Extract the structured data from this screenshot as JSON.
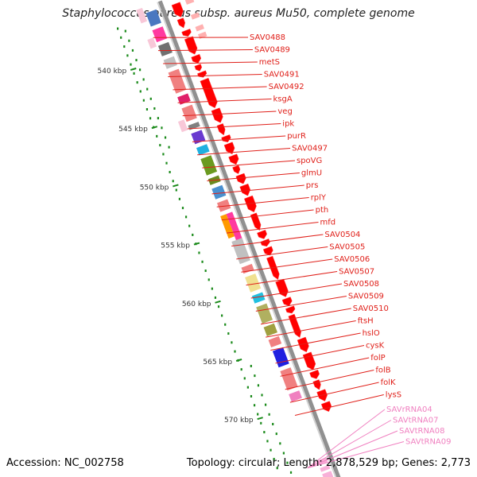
{
  "title": "Staphylococcus aureus subsp. aureus Mu50, complete genome",
  "footer": {
    "accession": "Accession: NC_002758",
    "topology": "Topology: circular; Length: 2,878,529 bp; Genes: 2,773"
  },
  "colors": {
    "backbone": "#909090",
    "forward_arrow": "#ff0000",
    "label_red": "#e0201a",
    "label_pink": "#f080c0",
    "ruler": "#1a8a1a"
  },
  "kbp_ticks": [
    "540 kbp",
    "545 kbp",
    "550 kbp",
    "555 kbp",
    "560 kbp",
    "565 kbp",
    "570 kbp"
  ],
  "gene_labels": [
    {
      "text": "SAV0488",
      "kind": "cds"
    },
    {
      "text": "SAV0489",
      "kind": "cds"
    },
    {
      "text": "metS",
      "kind": "cds"
    },
    {
      "text": "SAV0491",
      "kind": "cds"
    },
    {
      "text": "SAV0492",
      "kind": "cds"
    },
    {
      "text": "ksgA",
      "kind": "cds"
    },
    {
      "text": "veg",
      "kind": "cds"
    },
    {
      "text": "ipk",
      "kind": "cds"
    },
    {
      "text": "purR",
      "kind": "cds"
    },
    {
      "text": "SAV0497",
      "kind": "cds"
    },
    {
      "text": "spoVG",
      "kind": "cds"
    },
    {
      "text": "glmU",
      "kind": "cds"
    },
    {
      "text": "prs",
      "kind": "cds"
    },
    {
      "text": "rplY",
      "kind": "cds"
    },
    {
      "text": "pth",
      "kind": "cds"
    },
    {
      "text": "mfd",
      "kind": "cds"
    },
    {
      "text": "SAV0504",
      "kind": "cds"
    },
    {
      "text": "SAV0505",
      "kind": "cds"
    },
    {
      "text": "SAV0506",
      "kind": "cds"
    },
    {
      "text": "SAV0507",
      "kind": "cds"
    },
    {
      "text": "SAV0508",
      "kind": "cds"
    },
    {
      "text": "SAV0509",
      "kind": "cds"
    },
    {
      "text": "SAV0510",
      "kind": "cds"
    },
    {
      "text": "ftsH",
      "kind": "cds"
    },
    {
      "text": "hslO",
      "kind": "cds"
    },
    {
      "text": "cysK",
      "kind": "cds"
    },
    {
      "text": "folP",
      "kind": "cds"
    },
    {
      "text": "folB",
      "kind": "cds"
    },
    {
      "text": "folK",
      "kind": "cds"
    },
    {
      "text": "lysS",
      "kind": "cds"
    },
    {
      "text": "SAVrRNA04",
      "kind": "rna"
    },
    {
      "text": "SAVtRNA07",
      "kind": "rna"
    },
    {
      "text": "SAVtRNA08",
      "kind": "rna"
    },
    {
      "text": "SAVtRNA09",
      "kind": "rna"
    }
  ],
  "cog_blocks": [
    {
      "color": "#4a78c0"
    },
    {
      "color": "#ff3aa0"
    },
    {
      "color": "#707070"
    },
    {
      "color": "#c0c0c0"
    },
    {
      "color": "#f08080"
    },
    {
      "color": "#e0206a"
    },
    {
      "color": "#f08080"
    },
    {
      "color": "#808080"
    },
    {
      "color": "#6a3ad0"
    },
    {
      "color": "#20b0e0"
    },
    {
      "color": "#6a9a20"
    },
    {
      "color": "#6a8a20"
    },
    {
      "color": "#4a90d0"
    },
    {
      "color": "#f08080"
    },
    {
      "color": "#ff3aa0"
    },
    {
      "color": "#ff9a00"
    },
    {
      "color": "#c0c0c0"
    },
    {
      "color": "#f08080"
    },
    {
      "color": "#f0e090"
    },
    {
      "color": "#20c0e0"
    },
    {
      "color": "#b0b060"
    },
    {
      "color": "#a0a040"
    },
    {
      "color": "#f08080"
    },
    {
      "color": "#2020e0"
    },
    {
      "color": "#f08080"
    },
    {
      "color": "#f080c0"
    }
  ]
}
